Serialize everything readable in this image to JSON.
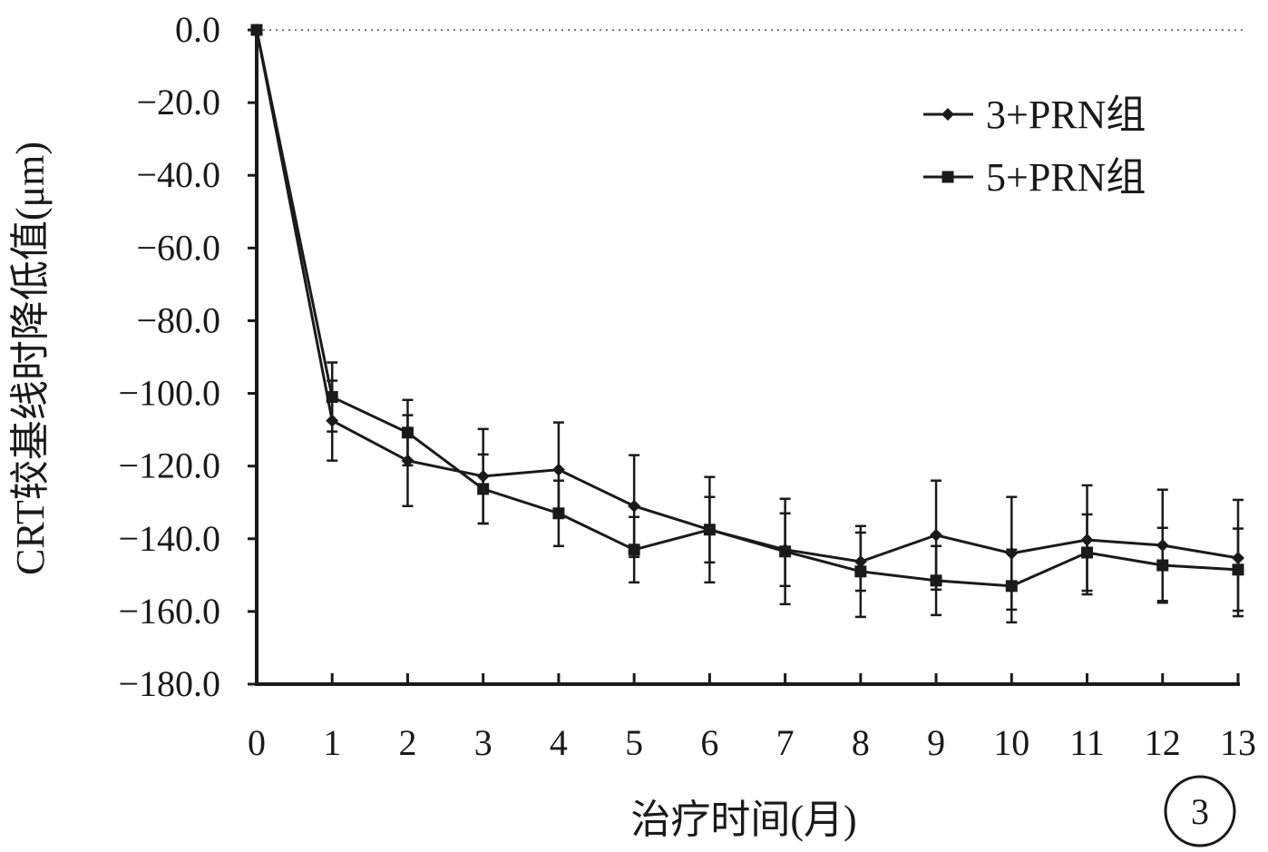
{
  "chart_data": {
    "type": "line",
    "title": "",
    "xlabel": "治疗时间(月)",
    "ylabel": "CRT较基线时降低值(μm)",
    "panel_label": "3",
    "xlim": [
      0,
      13
    ],
    "ylim": [
      -180,
      0
    ],
    "x_ticks": [
      "0",
      "1",
      "2",
      "3",
      "4",
      "5",
      "6",
      "7",
      "8",
      "9",
      "10",
      "11",
      "12",
      "13"
    ],
    "y_ticks": [
      "0.0",
      "−20.0",
      "−40.0",
      "−60.0",
      "−80.0",
      "−100.0",
      "−120.0",
      "−140.0",
      "−160.0",
      "−180.0"
    ],
    "grid": false,
    "legend_position": "top-right",
    "x": [
      0,
      1,
      2,
      3,
      4,
      5,
      6,
      7,
      8,
      9,
      10,
      11,
      12,
      13
    ],
    "series": [
      {
        "name": "3+PRN组",
        "marker": "diamond",
        "color": "#1a1a1a",
        "values": [
          0,
          -107.5,
          -118.5,
          -122.8,
          -121.0,
          -131.0,
          -137.5,
          -143.0,
          -146.3,
          -139.0,
          -144.0,
          -140.3,
          -141.8,
          -145.3
        ],
        "error": [
          0,
          11.0,
          12.5,
          13.0,
          13.0,
          14.0,
          9.0,
          10.0,
          8.0,
          15.0,
          15.5,
          15.0,
          15.3,
          16.0
        ]
      },
      {
        "name": "5+PRN组",
        "marker": "square",
        "color": "#1a1a1a",
        "values": [
          0,
          -101.0,
          -110.8,
          -126.3,
          -133.0,
          -143.0,
          -137.5,
          -143.5,
          -149.0,
          -151.5,
          -153.0,
          -143.8,
          -147.3,
          -148.5
        ],
        "error": [
          0,
          9.5,
          9.0,
          9.5,
          9.0,
          9.0,
          14.5,
          14.5,
          12.5,
          9.5,
          10.0,
          10.5,
          10.3,
          11.3
        ]
      }
    ]
  }
}
